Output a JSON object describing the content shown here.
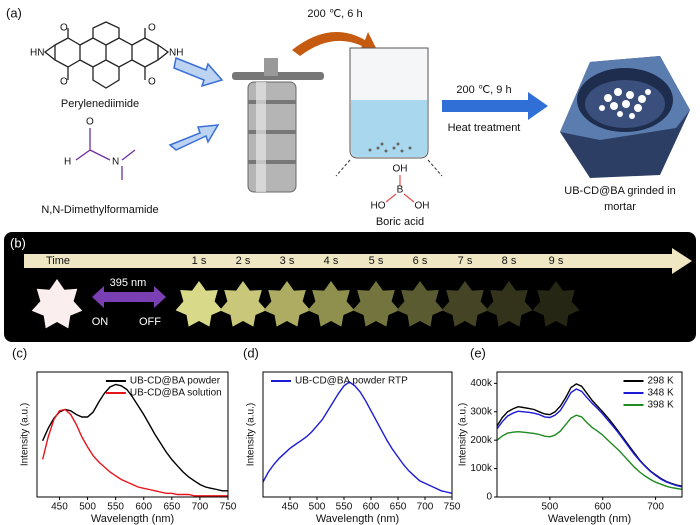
{
  "panel_a": {
    "label": "(a)",
    "perylenediimide_atoms": [
      "O",
      "O",
      "HN",
      "NH",
      "O",
      "O"
    ],
    "perylenediimide_name": "Perylenediimide",
    "dmf_atoms": [
      "O",
      "H",
      "N"
    ],
    "dmf_name": "N,N-Dimethylformamide",
    "step1": "200 ℃, 6 h",
    "boric_acid_atoms": [
      "OH",
      "B",
      "HO",
      "OH"
    ],
    "boric_acid_name": "Boric acid",
    "step2": "200 ℃, 9 h",
    "step2_note": "Heat treatment",
    "product_name": [
      "UB-CD@BA grinded in",
      "mortar"
    ]
  },
  "panel_b": {
    "label": "(b)",
    "time_label": "Time",
    "times": [
      "1 s",
      "2 s",
      "3 s",
      "4 s",
      "5 s",
      "6 s",
      "7 s",
      "8 s",
      "9 s"
    ],
    "excitation": "395 nm",
    "on": "ON",
    "off": "OFF"
  },
  "chart_data": [
    {
      "type": "line",
      "label": "(c)",
      "x_label": "Wavelength (nm)",
      "y_label": "Intensity (a.u.)",
      "xlim": [
        410,
        750
      ],
      "xticks": [
        450,
        500,
        550,
        600,
        650,
        700,
        750
      ],
      "ylim": [
        0,
        1
      ],
      "legend": "upper right",
      "x": [
        420,
        430,
        440,
        450,
        460,
        470,
        480,
        490,
        500,
        510,
        520,
        530,
        540,
        550,
        560,
        570,
        580,
        590,
        600,
        610,
        620,
        630,
        640,
        650,
        660,
        670,
        680,
        690,
        700,
        710,
        720,
        730,
        740,
        750
      ],
      "series": [
        {
          "name": "UB-CD@BA powder",
          "color": "#000000",
          "values": [
            0.45,
            0.55,
            0.63,
            0.68,
            0.7,
            0.69,
            0.66,
            0.64,
            0.64,
            0.68,
            0.76,
            0.83,
            0.88,
            0.9,
            0.89,
            0.86,
            0.8,
            0.73,
            0.66,
            0.58,
            0.5,
            0.43,
            0.36,
            0.3,
            0.25,
            0.2,
            0.16,
            0.13,
            0.1,
            0.08,
            0.07,
            0.06,
            0.05,
            0.05
          ]
        },
        {
          "name": "UB-CD@BA solution",
          "color": "#e8141b",
          "values": [
            0.3,
            0.48,
            0.62,
            0.69,
            0.7,
            0.66,
            0.58,
            0.48,
            0.4,
            0.33,
            0.28,
            0.24,
            0.2,
            0.17,
            0.14,
            0.12,
            0.1,
            0.08,
            0.07,
            0.06,
            0.05,
            0.04,
            0.03,
            0.03,
            0.02,
            0.02,
            0.02,
            0.01,
            0.01,
            0.01,
            0.01,
            0.01,
            0.01,
            0.01
          ]
        }
      ]
    },
    {
      "type": "line",
      "label": "(d)",
      "x_label": "Wavelength (nm)",
      "y_label": "Intensity (a.u.)",
      "xlim": [
        400,
        750
      ],
      "xticks": [
        450,
        500,
        550,
        600,
        650,
        700,
        750
      ],
      "ylim": [
        0,
        1
      ],
      "legend": "upper left",
      "x": [
        400,
        410,
        420,
        430,
        440,
        450,
        460,
        470,
        480,
        490,
        500,
        510,
        520,
        530,
        540,
        550,
        560,
        570,
        580,
        590,
        600,
        610,
        620,
        630,
        640,
        650,
        660,
        670,
        680,
        690,
        700,
        710,
        720,
        730,
        740,
        750
      ],
      "series": [
        {
          "name": "UB-CD@BA powder RTP",
          "color": "#1c1cd6",
          "values": [
            0.12,
            0.2,
            0.26,
            0.31,
            0.35,
            0.39,
            0.42,
            0.45,
            0.48,
            0.52,
            0.57,
            0.62,
            0.69,
            0.76,
            0.83,
            0.89,
            0.92,
            0.89,
            0.84,
            0.77,
            0.69,
            0.61,
            0.53,
            0.45,
            0.38,
            0.32,
            0.26,
            0.21,
            0.17,
            0.13,
            0.11,
            0.09,
            0.07,
            0.05,
            0.04,
            0.03
          ]
        }
      ]
    },
    {
      "type": "line",
      "label": "(e)",
      "x_label": "Wavelength (nm)",
      "y_label": "Intensity (a.u.)",
      "xlim": [
        400,
        750
      ],
      "xticks": [
        500,
        600,
        700
      ],
      "ylim": [
        0,
        440000
      ],
      "yticks": [
        0,
        {
          "value": 100000,
          "label": "100k"
        },
        {
          "value": 200000,
          "label": "200k"
        },
        {
          "value": 300000,
          "label": "300k"
        },
        {
          "value": 400000,
          "label": "400k"
        }
      ],
      "legend": "upper right",
      "x": [
        400,
        410,
        420,
        430,
        440,
        450,
        460,
        470,
        480,
        490,
        500,
        510,
        520,
        530,
        540,
        550,
        560,
        570,
        580,
        590,
        600,
        610,
        620,
        630,
        640,
        650,
        660,
        670,
        680,
        690,
        700,
        710,
        720,
        730,
        740,
        750
      ],
      "series": [
        {
          "name": "298 K",
          "color": "#000000",
          "values": [
            250000,
            280000,
            300000,
            310000,
            318000,
            315000,
            312000,
            308000,
            300000,
            292000,
            290000,
            300000,
            320000,
            350000,
            385000,
            398000,
            390000,
            365000,
            340000,
            320000,
            300000,
            278000,
            255000,
            230000,
            205000,
            180000,
            155000,
            130000,
            110000,
            92000,
            78000,
            65000,
            55000,
            48000,
            42000,
            38000
          ]
        },
        {
          "name": "348 K",
          "color": "#1c1cd6",
          "values": [
            240000,
            265000,
            285000,
            295000,
            302000,
            300000,
            298000,
            295000,
            290000,
            282000,
            280000,
            288000,
            305000,
            335000,
            368000,
            380000,
            372000,
            350000,
            330000,
            312000,
            292000,
            270000,
            248000,
            225000,
            200000,
            175000,
            150000,
            128000,
            108000,
            90000,
            76000,
            63000,
            53000,
            46000,
            40000,
            36000
          ]
        },
        {
          "name": "398 K",
          "color": "#1f8a1f",
          "values": [
            200000,
            215000,
            225000,
            228000,
            230000,
            228000,
            226000,
            224000,
            220000,
            214000,
            212000,
            218000,
            232000,
            255000,
            278000,
            288000,
            282000,
            262000,
            245000,
            232000,
            218000,
            200000,
            182000,
            165000,
            145000,
            125000,
            105000,
            88000,
            74000,
            62000,
            52000,
            45000,
            38000,
            33000,
            30000,
            27000
          ]
        }
      ]
    }
  ]
}
